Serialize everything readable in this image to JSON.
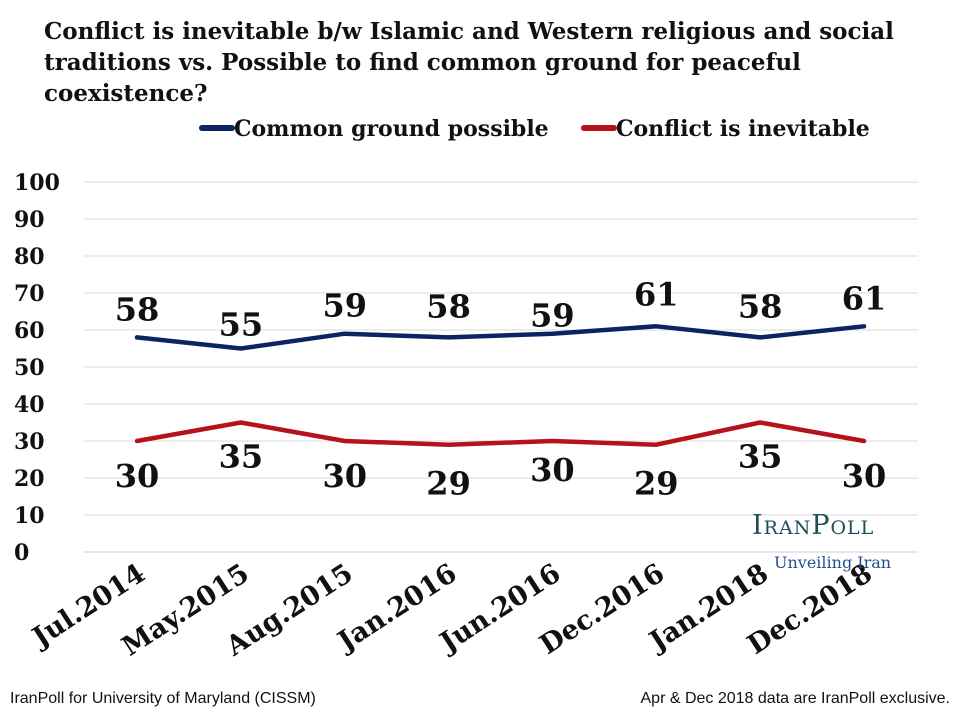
{
  "title": "Conflict is inevitable b/w Islamic and Western religious and social traditions vs. Possible to find common ground for peaceful coexistence?",
  "chart_data": {
    "type": "line",
    "categories": [
      "Jul.2014",
      "May.2015",
      "Aug.2015",
      "Jan.2016",
      "Jun.2016",
      "Dec.2016",
      "Jan.2018",
      "Dec.2018"
    ],
    "series": [
      {
        "name": "Common ground possible",
        "color": "#0c2561",
        "values": [
          58,
          55,
          59,
          58,
          59,
          61,
          58,
          61
        ]
      },
      {
        "name": "Conflict is inevitable",
        "color": "#b5121b",
        "values": [
          30,
          35,
          30,
          29,
          30,
          29,
          35,
          30
        ]
      }
    ],
    "ylim": [
      0,
      100
    ],
    "yticks": [
      0,
      10,
      20,
      30,
      40,
      50,
      60,
      70,
      80,
      90,
      100
    ],
    "grid": true,
    "legend_position": "top"
  },
  "brand": {
    "name": "IranPoll",
    "tagline": "Unveiling Iran"
  },
  "footer": {
    "source": "IranPoll for University of Maryland (CISSM)",
    "note": "Apr & Dec 2018 data are IranPoll exclusive."
  }
}
